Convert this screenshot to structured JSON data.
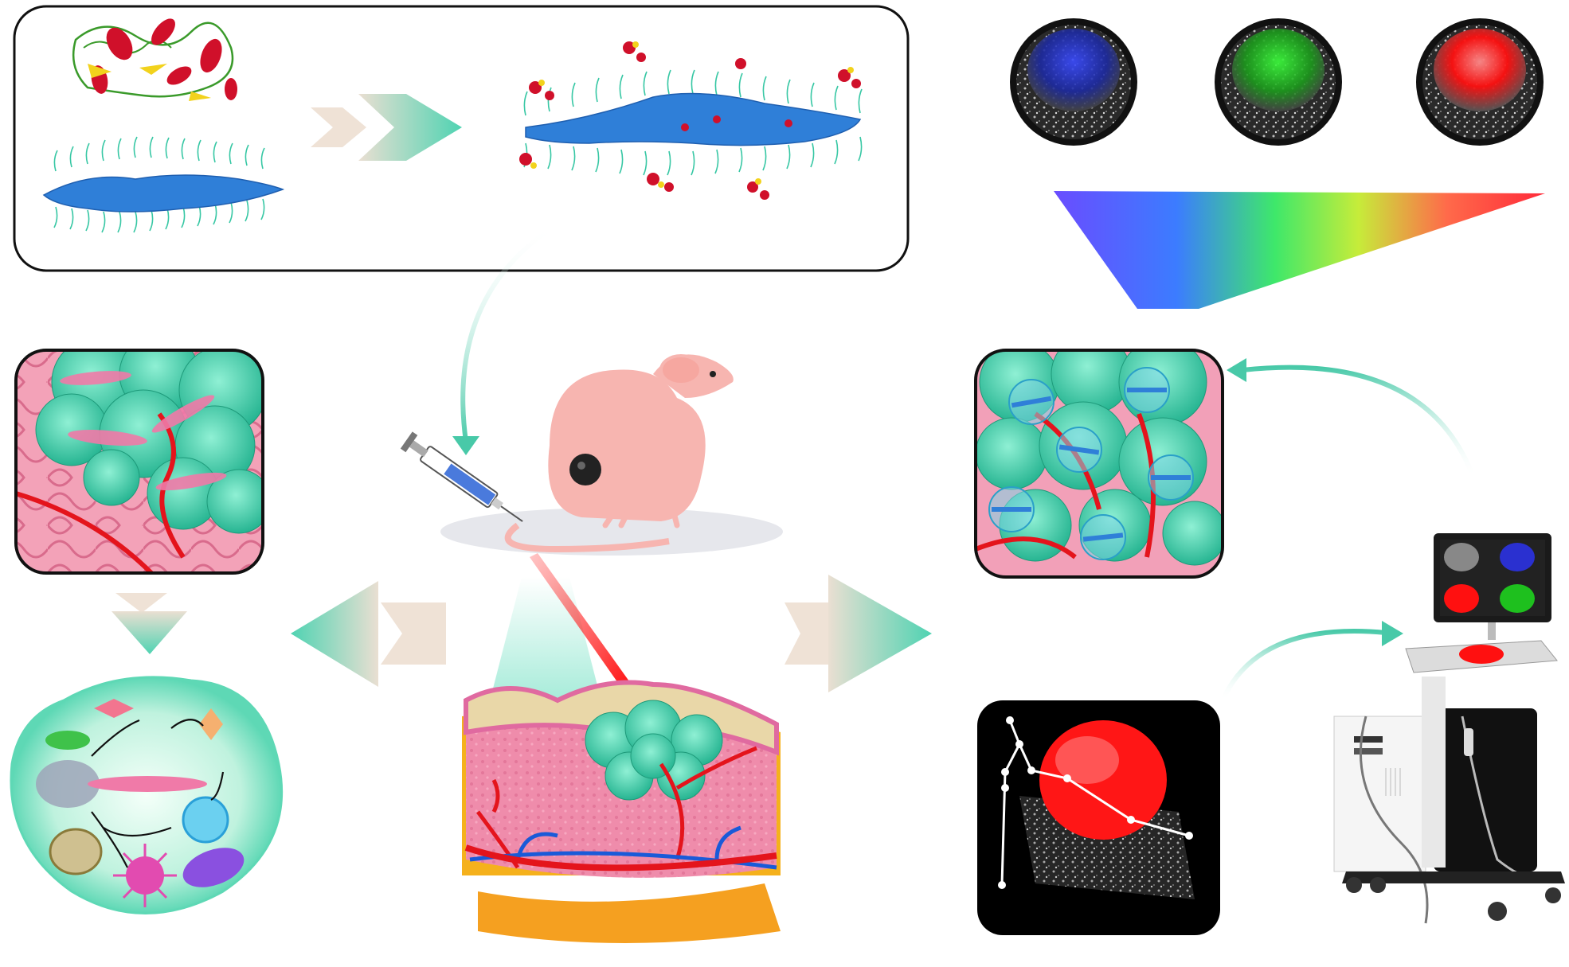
{
  "colors": {
    "background": "#ffffff",
    "teal": "#3fd0b0",
    "teal_light": "#9ee8d4",
    "nanosheet_blue": "#2f7fd8",
    "protein_red": "#d0102a",
    "protein_yellow": "#f2d21c",
    "protein_green": "#3a9a2a",
    "skin_pink": "#f08aa6",
    "vessel_red": "#e4141c",
    "vessel_blue": "#1a5ad8",
    "fat_orange": "#f5a020",
    "mouse_pink": "#f7b5b0",
    "laser_red": "#ff1010",
    "beige": "#eadfd2"
  },
  "fluorescence_channels": [
    "blue",
    "green",
    "red"
  ],
  "icons": [
    "protein-structure-icon",
    "nanosheet-icon",
    "syringe-icon",
    "mouse-icon",
    "laser-beam-icon",
    "skin-tumor-block-icon",
    "ultrasound-scanner-icon"
  ]
}
